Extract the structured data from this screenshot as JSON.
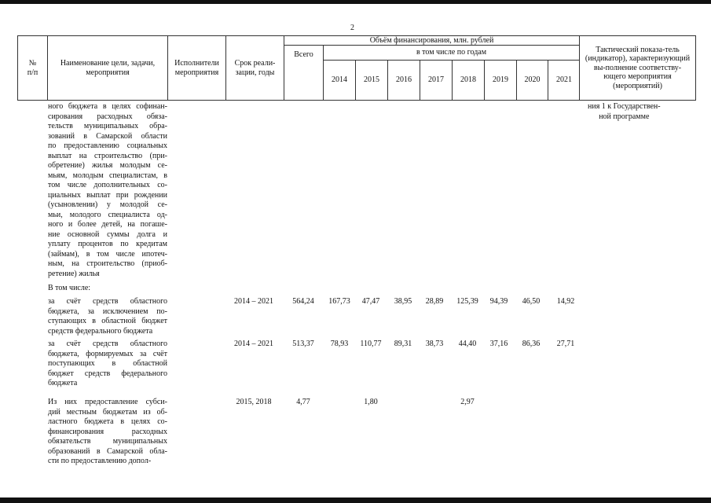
{
  "page_number": "2",
  "header": {
    "num": "№\nп/п",
    "name": "Наименование цели, задачи, мероприятия",
    "executors": "Исполнители мероприятия",
    "period": "Срок реали-зации, годы",
    "funding": "Объём финансирования, млн. рублей",
    "total": "Всего",
    "by_years": "в том числе по годам",
    "years": [
      "2014",
      "2015",
      "2016",
      "2017",
      "2018",
      "2019",
      "2020",
      "2021"
    ],
    "indicator": "Тактический показа-тель (индикатор), характеризующий вы-полнение соответству-ющего мероприятия (мероприятий)"
  },
  "continuation": {
    "lines": [
      "ного бюджета в целях софинан-",
      "сирования расходных обяза-",
      "тельств муниципальных обра-",
      "зований в Самарской области",
      "по предоставлению социальных",
      "выплат на строительство (при-",
      "обретение) жилья молодым се-",
      "мьям, молодым специалистам, в",
      "том числе дополнительных со-",
      "циальных выплат при рождении",
      "(усыновлении) у молодой се-",
      "мьи, молодого специалиста од-",
      "ного и более детей, на погаше-",
      "ние основной суммы долга и",
      "уплату процентов по кредитам",
      "(займам), в том числе ипотеч-",
      "ным, на строительство (приоб-",
      "ретение) жилья"
    ],
    "indicator_lines": [
      "ния 1 к Государствен-",
      "ной программе"
    ]
  },
  "including_label": "В том числе:",
  "rows": [
    {
      "lines": [
        "  за счёт средств областного",
        "бюджета, за исключением по-",
        "ступающих в областной бюджет",
        "средств федерального бюджета"
      ],
      "period": "2014 – 2021",
      "total": "564,24",
      "years": [
        "167,73",
        "47,47",
        "38,95",
        "28,89",
        "125,39",
        "94,39",
        "46,50",
        "14,92"
      ]
    },
    {
      "lines": [
        "  за счёт средств областного",
        "бюджета, формируемых за счёт",
        "поступающих в областной",
        "бюджет средств федерального",
        "бюджета"
      ],
      "period": "2014 – 2021",
      "total": "513,37",
      "years": [
        "78,93",
        "110,77",
        "89,31",
        "38,73",
        "44,40",
        "37,16",
        "86,36",
        "27,71"
      ]
    },
    {
      "lines": [
        "Из них предоставление субси-",
        "дий местным бюджетам из об-",
        "ластного бюджета в целях со-",
        "финансирования расходных",
        "обязательств муниципальных",
        "образований в Самарской обла-",
        "сти по предоставлению допол-"
      ],
      "period": "2015, 2018",
      "total": "4,77",
      "years": [
        "",
        "1,80",
        "",
        "",
        "2,97",
        "",
        "",
        ""
      ]
    }
  ]
}
